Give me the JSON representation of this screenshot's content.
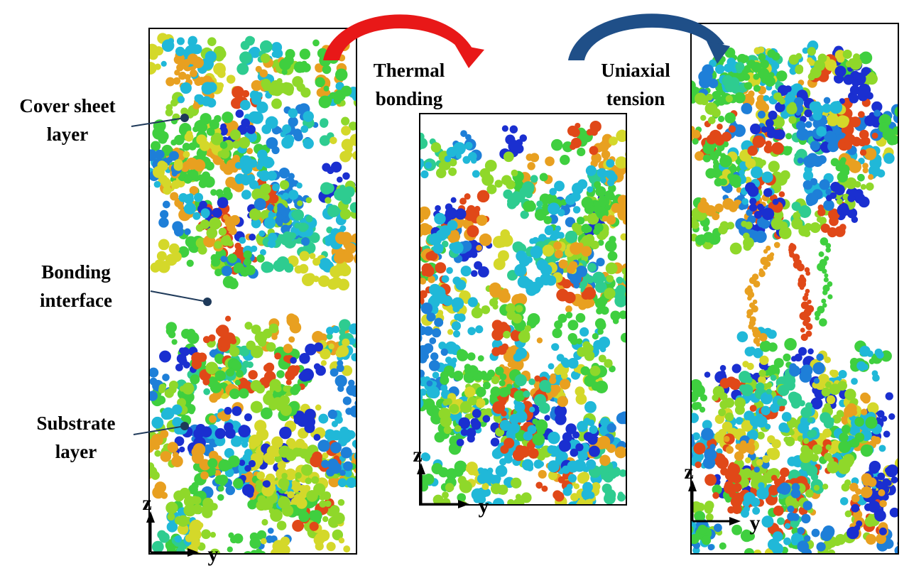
{
  "labels": {
    "cover_sheet": [
      "Cover sheet",
      "layer"
    ],
    "bonding_interface": [
      "Bonding",
      "interface"
    ],
    "substrate": [
      "Substrate",
      "layer"
    ]
  },
  "steps": {
    "thermal_bonding": [
      "Thermal",
      "bonding"
    ],
    "uniaxial_tension": [
      "Uniaxial",
      "tension"
    ]
  },
  "panels": [
    {
      "z_axis": "z",
      "y_axis": "y"
    },
    {
      "z_axis": "z",
      "y_axis": "y"
    },
    {
      "z_axis": "z",
      "y_axis": "y"
    }
  ]
}
